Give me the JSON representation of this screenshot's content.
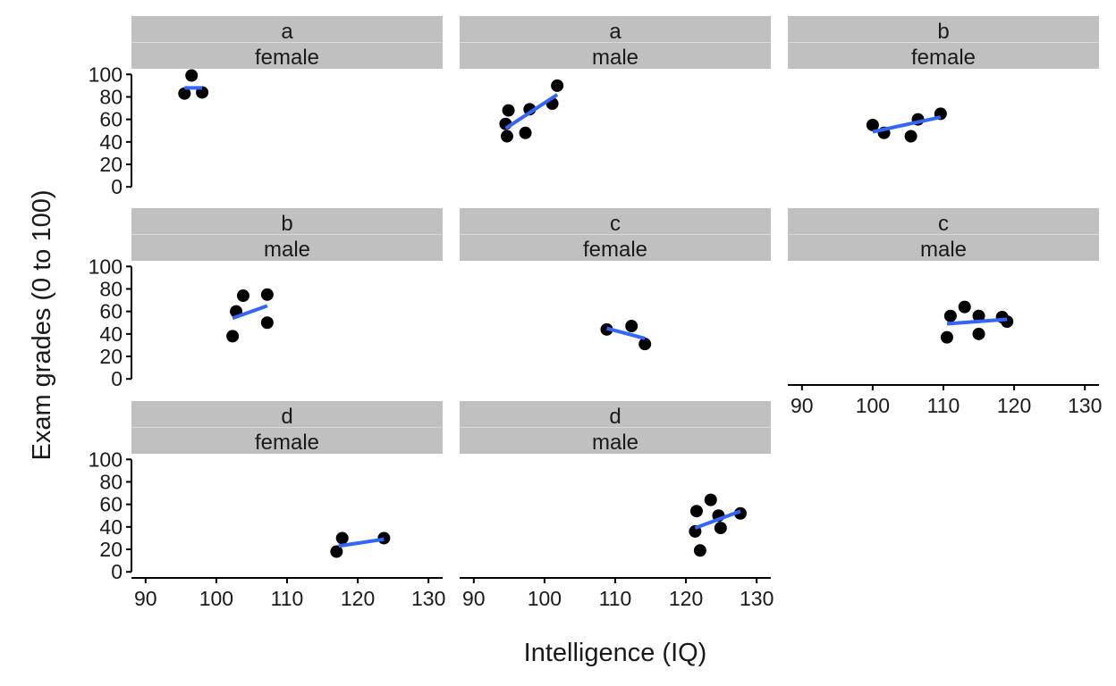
{
  "chart_data": {
    "type": "scatter",
    "layout": "facet-wrap",
    "ncol": 3,
    "xlabel": "Intelligence (IQ)",
    "ylabel": "Exam grades (0 to 100)",
    "xlim": [
      88,
      132
    ],
    "ylim": [
      -3,
      105
    ],
    "x_ticks": [
      90,
      100,
      110,
      120,
      130
    ],
    "y_ticks": [
      0,
      20,
      40,
      60,
      80,
      100
    ],
    "colors": {
      "points": "#000000",
      "fit": "#3366ff",
      "strip": "#c0c0c0"
    },
    "panels": [
      {
        "group": "a",
        "sex": "female",
        "points": [
          [
            95.5,
            83
          ],
          [
            96.5,
            99
          ],
          [
            98,
            84
          ]
        ],
        "fit": [
          [
            95.5,
            88
          ],
          [
            98,
            88
          ]
        ]
      },
      {
        "group": "a",
        "sex": "male",
        "points": [
          [
            94.5,
            56
          ],
          [
            94.7,
            45
          ],
          [
            94.9,
            68
          ],
          [
            97.3,
            48
          ],
          [
            97.9,
            69
          ],
          [
            101.1,
            74
          ],
          [
            101.8,
            90
          ]
        ],
        "fit": [
          [
            94.5,
            52
          ],
          [
            101.8,
            82
          ]
        ]
      },
      {
        "group": "b",
        "sex": "female",
        "points": [
          [
            100,
            55
          ],
          [
            101.6,
            48
          ],
          [
            105.4,
            45
          ],
          [
            106.4,
            60
          ],
          [
            109.6,
            65
          ]
        ],
        "fit": [
          [
            100,
            49
          ],
          [
            109.6,
            62
          ]
        ]
      },
      {
        "group": "b",
        "sex": "male",
        "points": [
          [
            102.3,
            38
          ],
          [
            102.8,
            60
          ],
          [
            103.8,
            74
          ],
          [
            107.2,
            75
          ],
          [
            107.2,
            50
          ]
        ],
        "fit": [
          [
            102.3,
            54
          ],
          [
            107.2,
            65
          ]
        ]
      },
      {
        "group": "c",
        "sex": "female",
        "points": [
          [
            108.8,
            44
          ],
          [
            112.3,
            47
          ],
          [
            114.2,
            31
          ]
        ],
        "fit": [
          [
            108.8,
            45
          ],
          [
            114.2,
            36
          ]
        ]
      },
      {
        "group": "c",
        "sex": "male",
        "points": [
          [
            110.5,
            37
          ],
          [
            111,
            56
          ],
          [
            113,
            64
          ],
          [
            115,
            56
          ],
          [
            115,
            40
          ],
          [
            118.3,
            55
          ],
          [
            119,
            51
          ]
        ],
        "fit": [
          [
            110.5,
            49
          ],
          [
            119,
            53
          ]
        ]
      },
      {
        "group": "d",
        "sex": "female",
        "points": [
          [
            117,
            18
          ],
          [
            117.8,
            30
          ],
          [
            123.7,
            30
          ]
        ],
        "fit": [
          [
            117.3,
            23
          ],
          [
            123.7,
            29
          ]
        ]
      },
      {
        "group": "d",
        "sex": "male",
        "points": [
          [
            121.3,
            36
          ],
          [
            121.5,
            54
          ],
          [
            122,
            19
          ],
          [
            123.5,
            64
          ],
          [
            124.6,
            50
          ],
          [
            124.9,
            39
          ],
          [
            127.7,
            52
          ]
        ],
        "fit": [
          [
            121.3,
            39
          ],
          [
            127.7,
            54
          ]
        ]
      }
    ]
  }
}
